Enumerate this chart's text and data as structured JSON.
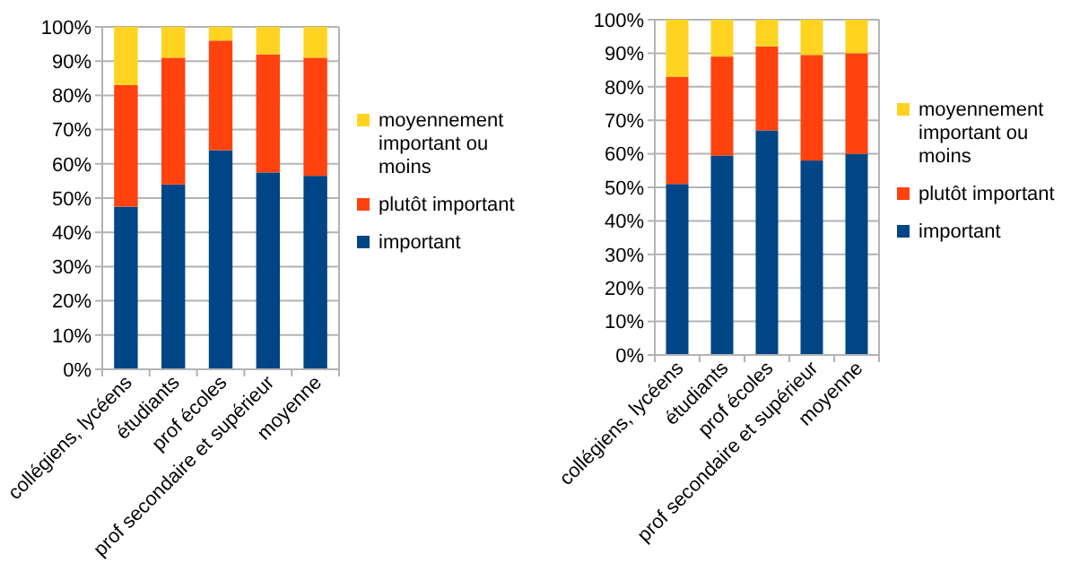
{
  "chart_data": [
    {
      "type": "bar",
      "stacked": true,
      "categories": [
        "collégiens, lycéens",
        "étudiants",
        "prof écoles",
        "prof secondaire et supérieur",
        "moyenne"
      ],
      "series": [
        {
          "name": "important",
          "color": "#004586",
          "values": [
            47.5,
            54,
            64,
            57.5,
            56.5
          ]
        },
        {
          "name": "plutôt important",
          "color": "#ff420e",
          "values": [
            35.5,
            37,
            32,
            34.5,
            34.5
          ]
        },
        {
          "name": "moyennement important ou moins",
          "color": "#ffd320",
          "values": [
            17,
            9,
            4,
            8,
            9
          ]
        }
      ],
      "ylim": [
        0,
        100
      ],
      "yticks": [
        {
          "value": 0,
          "label": "0%"
        },
        {
          "value": 10,
          "label": "10%"
        },
        {
          "value": 20,
          "label": "20%"
        },
        {
          "value": 30,
          "label": "30%"
        },
        {
          "value": 40,
          "label": "40%"
        },
        {
          "value": 50,
          "label": "50%"
        },
        {
          "value": 60,
          "label": "60%"
        },
        {
          "value": 70,
          "label": "70%"
        },
        {
          "value": 80,
          "label": "80%"
        },
        {
          "value": 90,
          "label": "90%"
        },
        {
          "value": 100,
          "label": "100%"
        }
      ],
      "grid": "y",
      "legend": "right"
    },
    {
      "type": "bar",
      "stacked": true,
      "categories": [
        "collégiens, lycéens",
        "étudiants",
        "prof écoles",
        "prof secondaire et supérieur",
        "moyenne"
      ],
      "series": [
        {
          "name": "important",
          "color": "#004586",
          "values": [
            51,
            59.5,
            67,
            58,
            60
          ]
        },
        {
          "name": "plutôt important",
          "color": "#ff420e",
          "values": [
            32,
            29.5,
            25,
            31.5,
            30
          ]
        },
        {
          "name": "moyennement important ou moins",
          "color": "#ffd320",
          "values": [
            17,
            11,
            8,
            10.5,
            10
          ]
        }
      ],
      "ylim": [
        0,
        100
      ],
      "yticks": [
        {
          "value": 0,
          "label": "0%"
        },
        {
          "value": 10,
          "label": "10%"
        },
        {
          "value": 20,
          "label": "20%"
        },
        {
          "value": 30,
          "label": "30%"
        },
        {
          "value": 40,
          "label": "40%"
        },
        {
          "value": 50,
          "label": "50%"
        },
        {
          "value": 60,
          "label": "60%"
        },
        {
          "value": 70,
          "label": "70%"
        },
        {
          "value": 80,
          "label": "80%"
        },
        {
          "value": 90,
          "label": "90%"
        },
        {
          "value": 100,
          "label": "100%"
        }
      ],
      "grid": "y",
      "legend": "right"
    }
  ]
}
